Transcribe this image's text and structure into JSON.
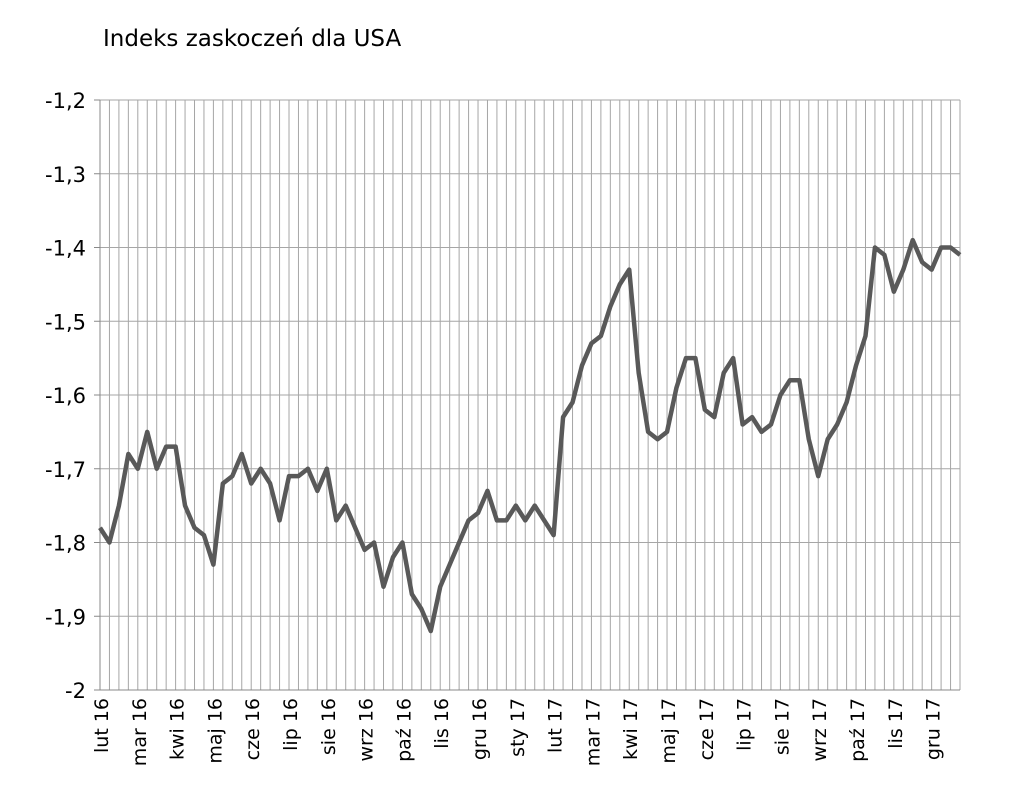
{
  "chart_data": {
    "type": "line",
    "title": "Indeks zaskoczeń dla USA",
    "categories": [
      "lut 16",
      null,
      null,
      null,
      "mar 16",
      null,
      null,
      null,
      "kwi 16",
      null,
      null,
      null,
      "maj 16",
      null,
      null,
      null,
      "cze 16",
      null,
      null,
      null,
      "lip 16",
      null,
      null,
      null,
      "sie 16",
      null,
      null,
      null,
      "wrz 16",
      null,
      null,
      null,
      "paź 16",
      null,
      null,
      null,
      "lis 16",
      null,
      null,
      null,
      "gru 16",
      null,
      null,
      null,
      "sty 17",
      null,
      null,
      null,
      "lut 17",
      null,
      null,
      null,
      "mar 17",
      null,
      null,
      null,
      "kwi 17",
      null,
      null,
      null,
      "maj 17",
      null,
      null,
      null,
      "cze 17",
      null,
      null,
      null,
      "lip 17",
      null,
      null,
      null,
      "sie 17",
      null,
      null,
      null,
      "wrz 17",
      null,
      null,
      null,
      "paź 17",
      null,
      null,
      null,
      "lis 17",
      null,
      null,
      null,
      "gru 17",
      null,
      null,
      null
    ],
    "series": [
      {
        "color": "#595959",
        "values": [
          -1.78,
          -1.8,
          -1.75,
          -1.68,
          -1.7,
          -1.65,
          -1.7,
          -1.67,
          -1.67,
          -1.75,
          -1.78,
          -1.79,
          -1.83,
          -1.72,
          -1.71,
          -1.68,
          -1.72,
          -1.7,
          -1.72,
          -1.77,
          -1.71,
          -1.71,
          -1.7,
          -1.73,
          -1.7,
          -1.77,
          -1.75,
          -1.78,
          -1.81,
          -1.8,
          -1.86,
          -1.82,
          -1.8,
          -1.87,
          -1.89,
          -1.92,
          -1.86,
          -1.83,
          -1.8,
          -1.77,
          -1.76,
          -1.73,
          -1.77,
          -1.77,
          -1.75,
          -1.77,
          -1.75,
          -1.77,
          -1.79,
          -1.63,
          -1.61,
          -1.56,
          -1.53,
          -1.52,
          -1.48,
          -1.45,
          -1.43,
          -1.57,
          -1.65,
          -1.66,
          -1.65,
          -1.59,
          -1.55,
          -1.55,
          -1.62,
          -1.63,
          -1.57,
          -1.55,
          -1.64,
          -1.63,
          -1.65,
          -1.64,
          -1.6,
          -1.58,
          -1.58,
          -1.66,
          -1.71,
          -1.66,
          -1.64,
          -1.61,
          -1.56,
          -1.52,
          -1.4,
          -1.41,
          -1.46,
          -1.43,
          -1.39,
          -1.42,
          -1.43,
          -1.4,
          -1.4,
          -1.41
        ]
      }
    ],
    "ylim": [
      -2,
      -1.2
    ],
    "yticks": [
      {
        "value": -1.2,
        "label": "-1,2"
      },
      {
        "value": -1.3,
        "label": "-1,3"
      },
      {
        "value": -1.4,
        "label": "-1,4"
      },
      {
        "value": -1.5,
        "label": "-1,5"
      },
      {
        "value": -1.6,
        "label": "-1,6"
      },
      {
        "value": -1.7,
        "label": "-1,7"
      },
      {
        "value": -1.8,
        "label": "-1,8"
      },
      {
        "value": -1.9,
        "label": "-1,9"
      },
      {
        "value": -2,
        "label": "-2"
      }
    ],
    "grid": true
  }
}
